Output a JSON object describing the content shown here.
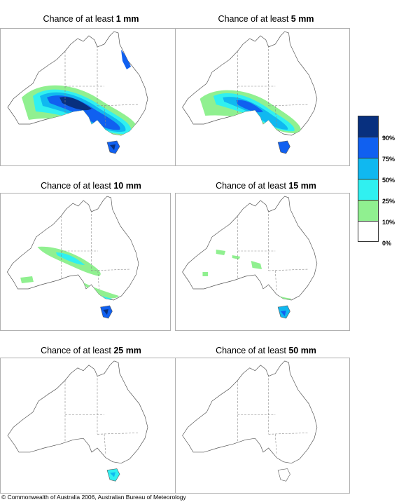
{
  "panels": [
    {
      "id": "p1",
      "prefix": "Chance of at least ",
      "amount": "1 mm"
    },
    {
      "id": "p5",
      "prefix": "Chance of at least ",
      "amount": "5 mm"
    },
    {
      "id": "p10",
      "prefix": "Chance of at least ",
      "amount": "10 mm"
    },
    {
      "id": "p15",
      "prefix": "Chance of at least ",
      "amount": "15 mm"
    },
    {
      "id": "p25",
      "prefix": "Chance of at least ",
      "amount": "25 mm"
    },
    {
      "id": "p50",
      "prefix": "Chance of at least ",
      "amount": "50 mm"
    }
  ],
  "legend": {
    "labels": [
      "90%",
      "75%",
      "50%",
      "25%",
      "10%",
      "0%"
    ],
    "colors": [
      "#08307f",
      "#1060f0",
      "#10b8f0",
      "#30f0f0",
      "#90f090",
      "#ffffff"
    ]
  },
  "copyright": "© Commonwealth of Australia 2006, Australian Bureau of Meteorology"
}
